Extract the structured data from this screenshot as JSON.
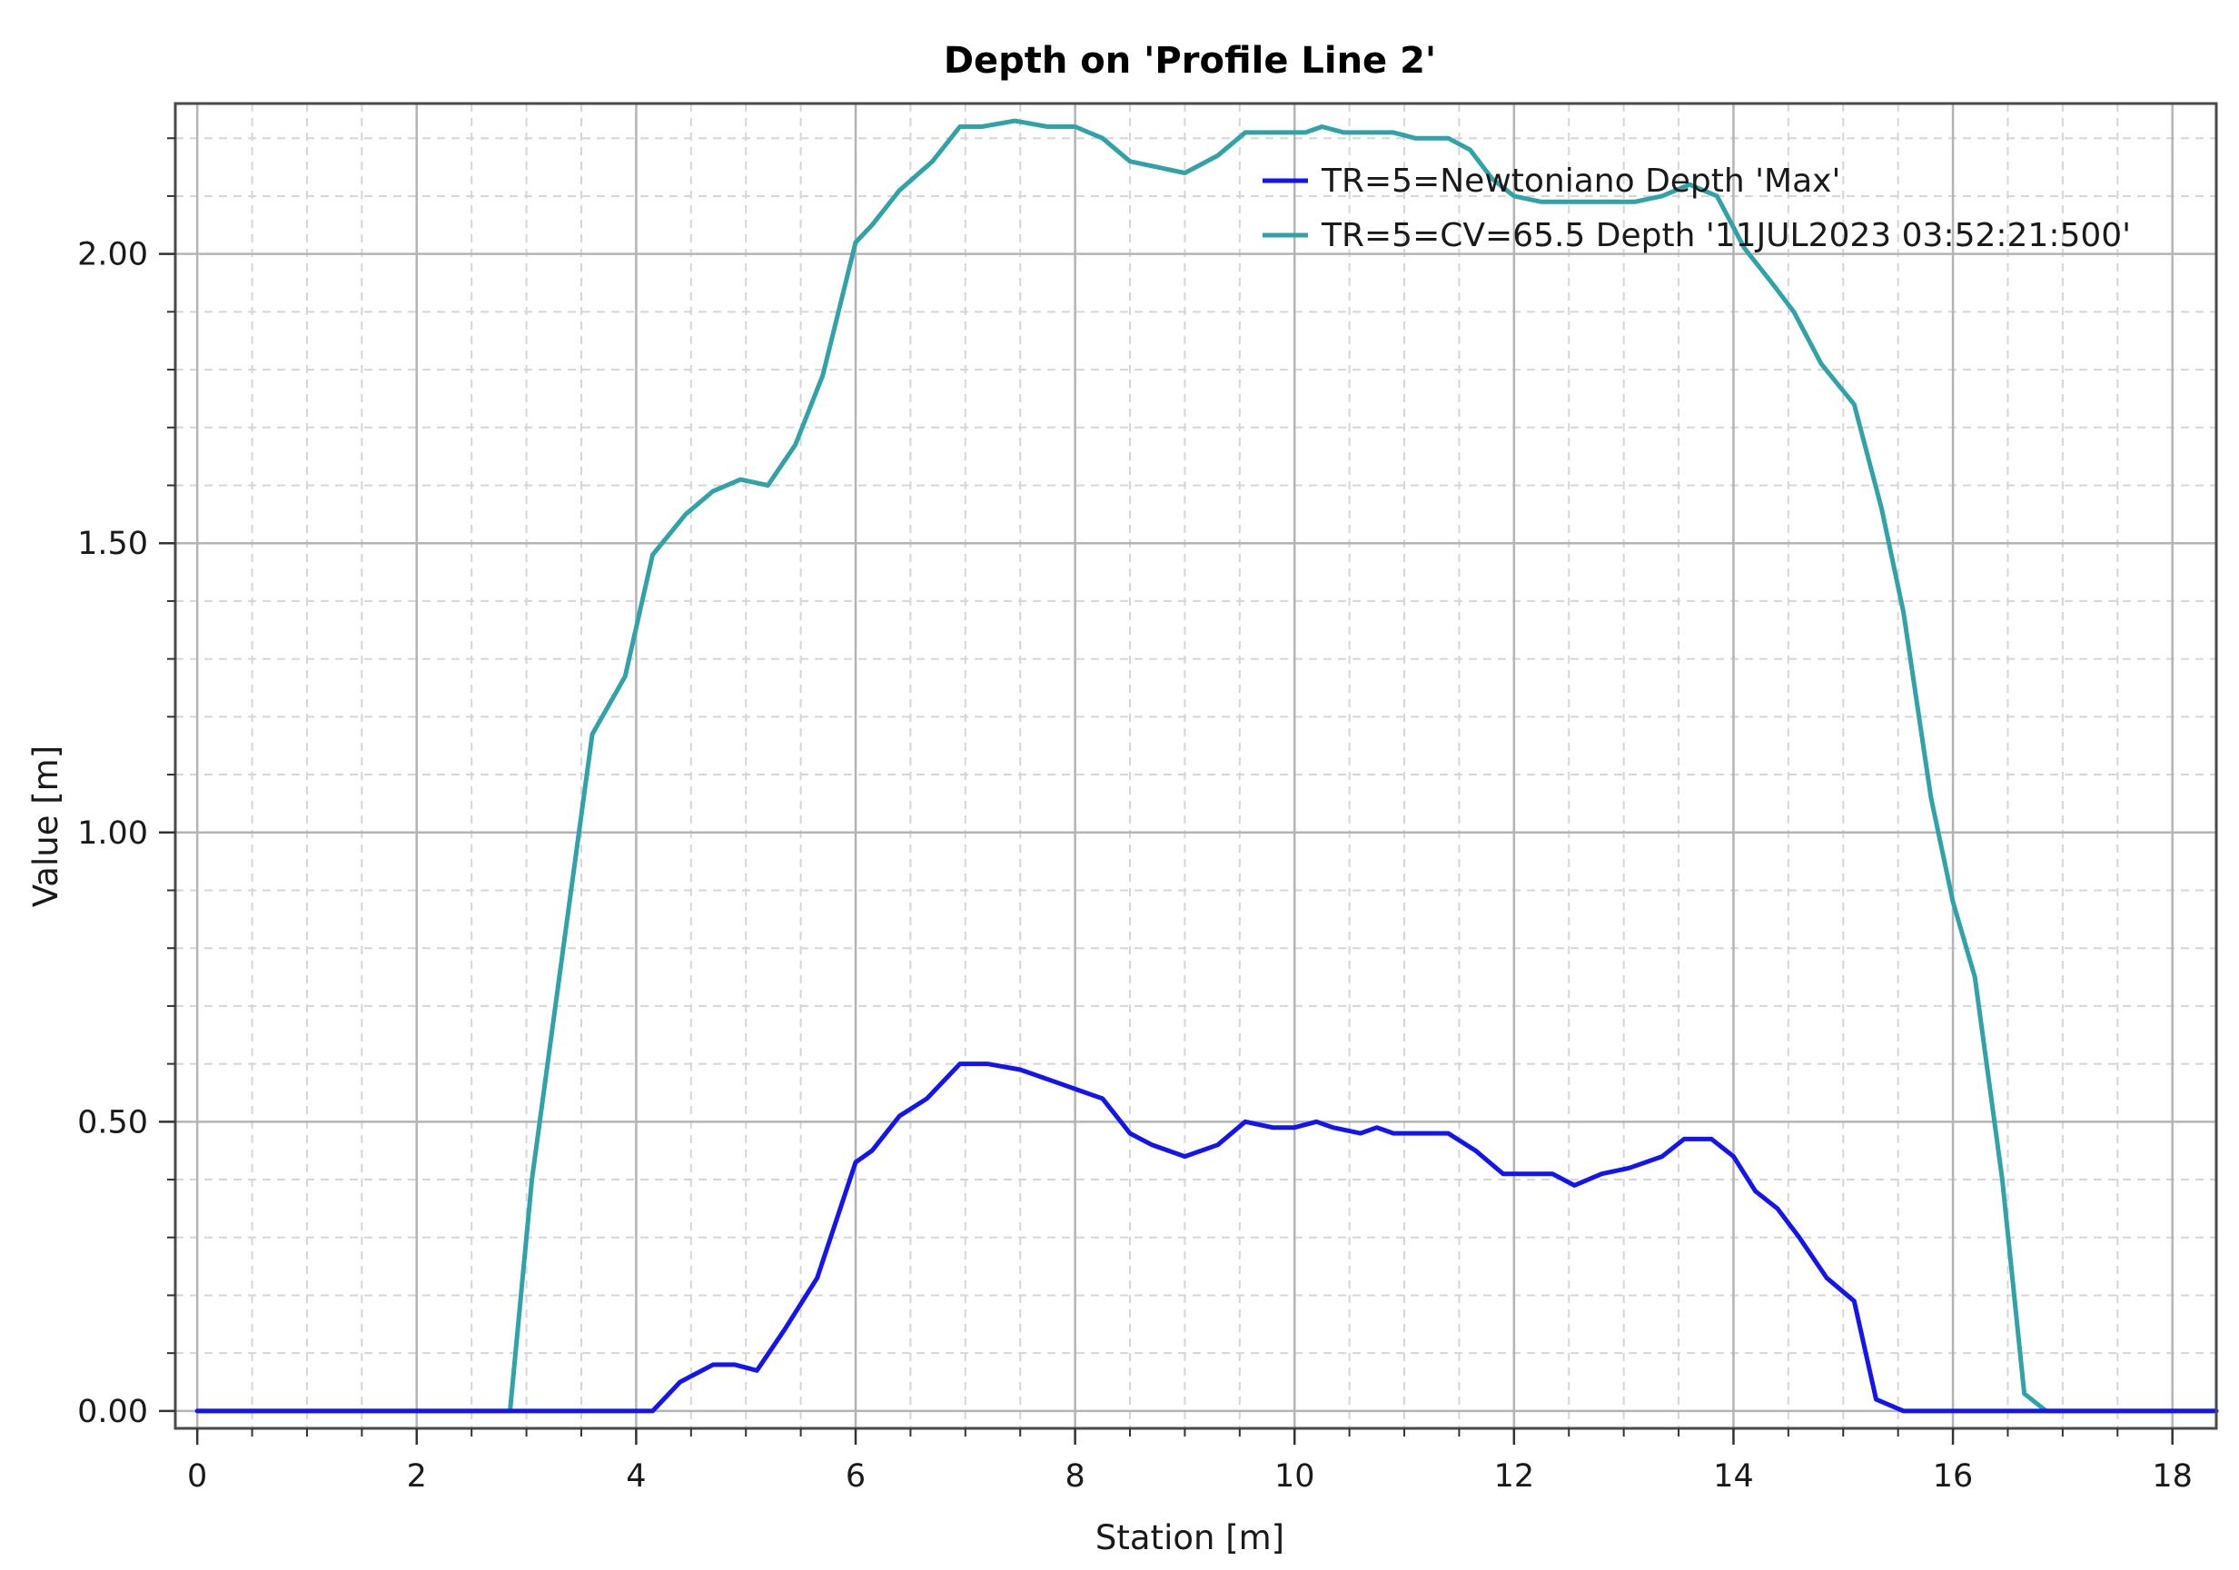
{
  "chart_data": {
    "type": "line",
    "title": "Depth on 'Profile Line 2'",
    "xlabel": "Station [m]",
    "ylabel": "Value [m]",
    "xlim": [
      -0.2,
      18.4
    ],
    "ylim": [
      -0.03,
      2.26
    ],
    "x_ticks": [
      0,
      2,
      4,
      6,
      8,
      10,
      12,
      14,
      16,
      18
    ],
    "x_tick_labels": [
      "0",
      "2",
      "4",
      "6",
      "8",
      "10",
      "12",
      "14",
      "16",
      "18"
    ],
    "y_ticks": [
      0,
      0.5,
      1.0,
      1.5,
      2.0
    ],
    "y_tick_labels": [
      "0.00",
      "0.50",
      "1.00",
      "1.50",
      "2.00"
    ],
    "grid": true,
    "legend_position": "top-right",
    "series": [
      {
        "name": "TR=5=Newtoniano Depth 'Max'",
        "color": "#1414f0",
        "points": [
          [
            0,
            0
          ],
          [
            4.15,
            0
          ],
          [
            4.4,
            0.05
          ],
          [
            4.7,
            0.08
          ],
          [
            4.9,
            0.08
          ],
          [
            5.1,
            0.07
          ],
          [
            5.35,
            0.14
          ],
          [
            5.65,
            0.23
          ],
          [
            6.0,
            0.43
          ],
          [
            6.15,
            0.45
          ],
          [
            6.4,
            0.51
          ],
          [
            6.65,
            0.54
          ],
          [
            6.95,
            0.6
          ],
          [
            7.2,
            0.6
          ],
          [
            7.5,
            0.59
          ],
          [
            7.8,
            0.57
          ],
          [
            8.1,
            0.55
          ],
          [
            8.25,
            0.54
          ],
          [
            8.5,
            0.48
          ],
          [
            8.7,
            0.46
          ],
          [
            9.0,
            0.44
          ],
          [
            9.3,
            0.46
          ],
          [
            9.55,
            0.5
          ],
          [
            9.8,
            0.49
          ],
          [
            10.0,
            0.49
          ],
          [
            10.2,
            0.5
          ],
          [
            10.35,
            0.49
          ],
          [
            10.6,
            0.48
          ],
          [
            10.75,
            0.49
          ],
          [
            10.9,
            0.48
          ],
          [
            11.1,
            0.48
          ],
          [
            11.4,
            0.48
          ],
          [
            11.65,
            0.45
          ],
          [
            11.9,
            0.41
          ],
          [
            12.1,
            0.41
          ],
          [
            12.35,
            0.41
          ],
          [
            12.55,
            0.39
          ],
          [
            12.8,
            0.41
          ],
          [
            13.05,
            0.42
          ],
          [
            13.35,
            0.44
          ],
          [
            13.55,
            0.47
          ],
          [
            13.8,
            0.47
          ],
          [
            14.0,
            0.44
          ],
          [
            14.2,
            0.38
          ],
          [
            14.4,
            0.35
          ],
          [
            14.6,
            0.3
          ],
          [
            14.85,
            0.23
          ],
          [
            15.1,
            0.19
          ],
          [
            15.3,
            0.02
          ],
          [
            15.55,
            0
          ],
          [
            18.4,
            0
          ]
        ]
      },
      {
        "name": "TR=5=CV=65.5 Depth '11JUL2023 03:52:21:500'",
        "color": "#2fa3a8",
        "points": [
          [
            0,
            0
          ],
          [
            2.85,
            0
          ],
          [
            3.05,
            0.4
          ],
          [
            3.3,
            0.75
          ],
          [
            3.6,
            1.17
          ],
          [
            3.9,
            1.27
          ],
          [
            4.15,
            1.48
          ],
          [
            4.45,
            1.55
          ],
          [
            4.7,
            1.59
          ],
          [
            4.95,
            1.61
          ],
          [
            5.2,
            1.6
          ],
          [
            5.45,
            1.67
          ],
          [
            5.7,
            1.79
          ],
          [
            6.0,
            2.02
          ],
          [
            6.15,
            2.05
          ],
          [
            6.4,
            2.11
          ],
          [
            6.7,
            2.16
          ],
          [
            6.95,
            2.22
          ],
          [
            7.15,
            2.22
          ],
          [
            7.45,
            2.23
          ],
          [
            7.75,
            2.22
          ],
          [
            8.0,
            2.22
          ],
          [
            8.25,
            2.2
          ],
          [
            8.5,
            2.16
          ],
          [
            8.75,
            2.15
          ],
          [
            9.0,
            2.14
          ],
          [
            9.3,
            2.17
          ],
          [
            9.55,
            2.21
          ],
          [
            9.85,
            2.21
          ],
          [
            10.1,
            2.21
          ],
          [
            10.25,
            2.22
          ],
          [
            10.45,
            2.21
          ],
          [
            10.6,
            2.21
          ],
          [
            10.75,
            2.21
          ],
          [
            10.9,
            2.21
          ],
          [
            11.1,
            2.2
          ],
          [
            11.4,
            2.2
          ],
          [
            11.6,
            2.18
          ],
          [
            11.8,
            2.13
          ],
          [
            12.0,
            2.1
          ],
          [
            12.25,
            2.09
          ],
          [
            12.5,
            2.09
          ],
          [
            12.8,
            2.09
          ],
          [
            13.1,
            2.09
          ],
          [
            13.35,
            2.1
          ],
          [
            13.6,
            2.12
          ],
          [
            13.85,
            2.1
          ],
          [
            14.1,
            2.01
          ],
          [
            14.35,
            1.95
          ],
          [
            14.55,
            1.9
          ],
          [
            14.8,
            1.81
          ],
          [
            15.1,
            1.74
          ],
          [
            15.35,
            1.56
          ],
          [
            15.55,
            1.38
          ],
          [
            15.8,
            1.06
          ],
          [
            16.0,
            0.88
          ],
          [
            16.2,
            0.75
          ],
          [
            16.45,
            0.4
          ],
          [
            16.65,
            0.03
          ],
          [
            16.85,
            0
          ],
          [
            18.4,
            0
          ]
        ]
      }
    ]
  }
}
